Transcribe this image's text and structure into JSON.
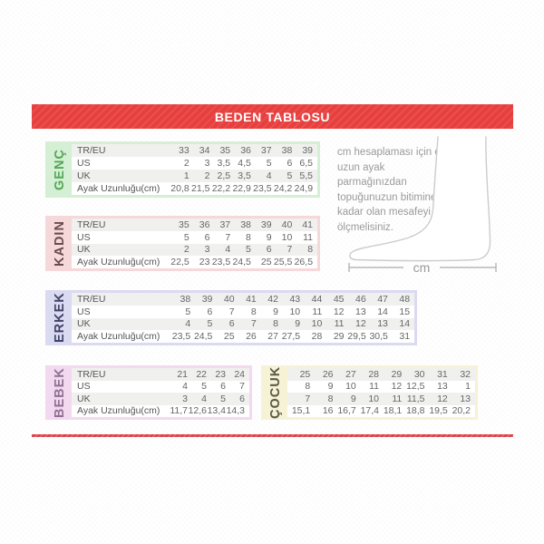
{
  "title": "BEDEN TABLOSU",
  "colors": {
    "banner_red": "#e73f3e",
    "divider_red": "#dc4348"
  },
  "tables": [
    {
      "label": "GENÇ",
      "band_color": "#d5efd5",
      "label_color": "#55a857",
      "rows": [
        {
          "label": "TR/EU",
          "values": [
            "33",
            "34",
            "35",
            "36",
            "37",
            "38",
            "39"
          ]
        },
        {
          "label": "US",
          "values": [
            "2",
            "3",
            "3,5",
            "4,5",
            "5",
            "6",
            "6,5"
          ]
        },
        {
          "label": "UK",
          "values": [
            "1",
            "2",
            "2,5",
            "3,5",
            "4",
            "5",
            "5,5"
          ]
        },
        {
          "label": "Ayak Uzunluğu(cm)",
          "values": [
            "20,8",
            "21,5",
            "22,2",
            "22,9",
            "23,5",
            "24,2",
            "24,9"
          ]
        }
      ]
    },
    {
      "label": "KADIN",
      "band_color": "#f6d8db",
      "label_color": "#6b4b50",
      "rows": [
        {
          "label": "TR/EU",
          "values": [
            "35",
            "36",
            "37",
            "38",
            "39",
            "40",
            "41"
          ]
        },
        {
          "label": "US",
          "values": [
            "5",
            "6",
            "7",
            "8",
            "9",
            "10",
            "11"
          ]
        },
        {
          "label": "UK",
          "values": [
            "2",
            "3",
            "4",
            "5",
            "6",
            "7",
            "8"
          ]
        },
        {
          "label": "Ayak Uzunluğu(cm)",
          "values": [
            "22,5",
            "23",
            "23,5",
            "24,5",
            "25",
            "25,5",
            "26,5"
          ]
        }
      ]
    },
    {
      "label": "ERKEK",
      "band_color": "#dadaf0",
      "label_color": "#3f4168",
      "rows": [
        {
          "label": "TR/EU",
          "values": [
            "38",
            "39",
            "40",
            "41",
            "42",
            "43",
            "44",
            "45",
            "46",
            "47",
            "48"
          ]
        },
        {
          "label": "US",
          "values": [
            "5",
            "6",
            "7",
            "8",
            "9",
            "10",
            "11",
            "12",
            "13",
            "14",
            "15"
          ]
        },
        {
          "label": "UK",
          "values": [
            "4",
            "5",
            "6",
            "7",
            "8",
            "9",
            "10",
            "11",
            "12",
            "13",
            "14"
          ]
        },
        {
          "label": "Ayak Uzunluğu(cm)",
          "values": [
            "23,5",
            "24,5",
            "25",
            "26",
            "27",
            "27,5",
            "28",
            "29",
            "29,5",
            "30,5",
            "31"
          ]
        }
      ]
    },
    {
      "label": "BEBEK",
      "band_color": "#f2d9ef",
      "label_color": "#8f6f92",
      "rows": [
        {
          "label": "TR/EU",
          "values": [
            "21",
            "22",
            "23",
            "24"
          ]
        },
        {
          "label": "US",
          "values": [
            "4",
            "5",
            "6",
            "7"
          ]
        },
        {
          "label": "UK",
          "values": [
            "3",
            "4",
            "5",
            "6"
          ]
        },
        {
          "label": "Ayak Uzunluğu(cm)",
          "values": [
            "11,7",
            "12,6",
            "13,4",
            "14,3"
          ]
        }
      ]
    },
    {
      "label": "ÇOCUK",
      "band_color": "#f6f2d6",
      "label_color": "#5a5a4a",
      "rows": [
        {
          "label": null,
          "values": [
            "25",
            "26",
            "27",
            "28",
            "29",
            "30",
            "31",
            "32"
          ]
        },
        {
          "label": null,
          "values": [
            "8",
            "9",
            "10",
            "11",
            "12",
            "12,5",
            "13",
            "1"
          ]
        },
        {
          "label": null,
          "values": [
            "7",
            "8",
            "9",
            "10",
            "11",
            "11,5",
            "12",
            "13"
          ]
        },
        {
          "label": null,
          "values": [
            "15,1",
            "16",
            "16,7",
            "17,4",
            "18,1",
            "18,8",
            "19,5",
            "20,2"
          ]
        }
      ]
    }
  ],
  "info": {
    "lines": [
      "cm hesaplaması için en",
      "uzun ayak parmağınızdan",
      "topuğunuzun bitimine",
      "kadar olan mesafeyi",
      "ölçmelisiniz."
    ],
    "measure_label": "cm"
  }
}
